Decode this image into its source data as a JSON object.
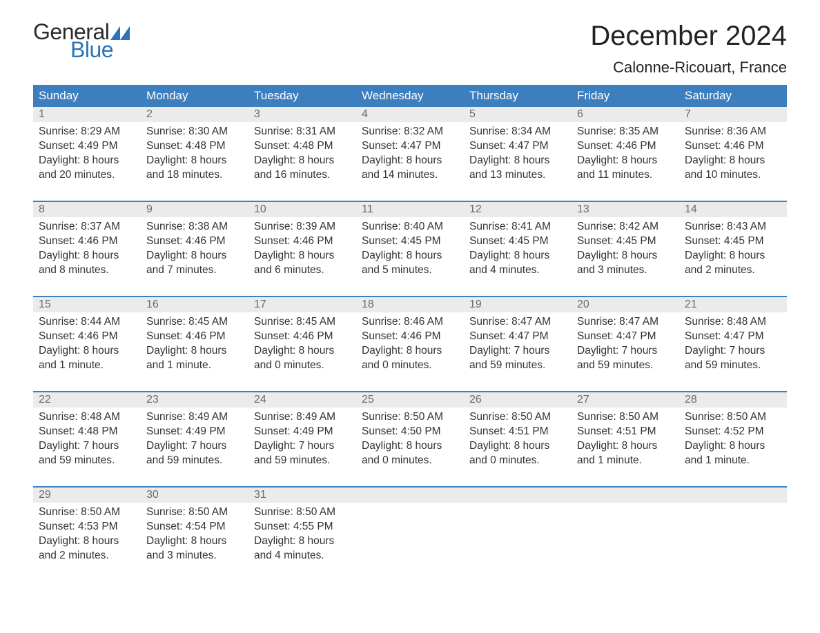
{
  "brand": {
    "word1": "General",
    "word2": "Blue",
    "text_color_dark": "#2b2b2b",
    "text_color_blue": "#2a73b8",
    "flag_color": "#2a73b8"
  },
  "header": {
    "title": "December 2024",
    "location": "Calonne-Ricouart, France"
  },
  "style": {
    "header_bg": "#3d7ebf",
    "header_text": "#ffffff",
    "daynum_bg": "#ebebeb",
    "daynum_text": "#6b6b6b",
    "body_text": "#333333",
    "week_border": "#3d7ebf",
    "page_bg": "#ffffff",
    "title_fontsize": 40,
    "subtitle_fontsize": 22,
    "weekday_fontsize": 17,
    "cell_fontsize": 15.5
  },
  "weekdays": [
    "Sunday",
    "Monday",
    "Tuesday",
    "Wednesday",
    "Thursday",
    "Friday",
    "Saturday"
  ],
  "weeks": [
    [
      {
        "d": "1",
        "sr": "Sunrise: 8:29 AM",
        "ss": "Sunset: 4:49 PM",
        "dl1": "Daylight: 8 hours",
        "dl2": "and 20 minutes."
      },
      {
        "d": "2",
        "sr": "Sunrise: 8:30 AM",
        "ss": "Sunset: 4:48 PM",
        "dl1": "Daylight: 8 hours",
        "dl2": "and 18 minutes."
      },
      {
        "d": "3",
        "sr": "Sunrise: 8:31 AM",
        "ss": "Sunset: 4:48 PM",
        "dl1": "Daylight: 8 hours",
        "dl2": "and 16 minutes."
      },
      {
        "d": "4",
        "sr": "Sunrise: 8:32 AM",
        "ss": "Sunset: 4:47 PM",
        "dl1": "Daylight: 8 hours",
        "dl2": "and 14 minutes."
      },
      {
        "d": "5",
        "sr": "Sunrise: 8:34 AM",
        "ss": "Sunset: 4:47 PM",
        "dl1": "Daylight: 8 hours",
        "dl2": "and 13 minutes."
      },
      {
        "d": "6",
        "sr": "Sunrise: 8:35 AM",
        "ss": "Sunset: 4:46 PM",
        "dl1": "Daylight: 8 hours",
        "dl2": "and 11 minutes."
      },
      {
        "d": "7",
        "sr": "Sunrise: 8:36 AM",
        "ss": "Sunset: 4:46 PM",
        "dl1": "Daylight: 8 hours",
        "dl2": "and 10 minutes."
      }
    ],
    [
      {
        "d": "8",
        "sr": "Sunrise: 8:37 AM",
        "ss": "Sunset: 4:46 PM",
        "dl1": "Daylight: 8 hours",
        "dl2": "and 8 minutes."
      },
      {
        "d": "9",
        "sr": "Sunrise: 8:38 AM",
        "ss": "Sunset: 4:46 PM",
        "dl1": "Daylight: 8 hours",
        "dl2": "and 7 minutes."
      },
      {
        "d": "10",
        "sr": "Sunrise: 8:39 AM",
        "ss": "Sunset: 4:46 PM",
        "dl1": "Daylight: 8 hours",
        "dl2": "and 6 minutes."
      },
      {
        "d": "11",
        "sr": "Sunrise: 8:40 AM",
        "ss": "Sunset: 4:45 PM",
        "dl1": "Daylight: 8 hours",
        "dl2": "and 5 minutes."
      },
      {
        "d": "12",
        "sr": "Sunrise: 8:41 AM",
        "ss": "Sunset: 4:45 PM",
        "dl1": "Daylight: 8 hours",
        "dl2": "and 4 minutes."
      },
      {
        "d": "13",
        "sr": "Sunrise: 8:42 AM",
        "ss": "Sunset: 4:45 PM",
        "dl1": "Daylight: 8 hours",
        "dl2": "and 3 minutes."
      },
      {
        "d": "14",
        "sr": "Sunrise: 8:43 AM",
        "ss": "Sunset: 4:45 PM",
        "dl1": "Daylight: 8 hours",
        "dl2": "and 2 minutes."
      }
    ],
    [
      {
        "d": "15",
        "sr": "Sunrise: 8:44 AM",
        "ss": "Sunset: 4:46 PM",
        "dl1": "Daylight: 8 hours",
        "dl2": "and 1 minute."
      },
      {
        "d": "16",
        "sr": "Sunrise: 8:45 AM",
        "ss": "Sunset: 4:46 PM",
        "dl1": "Daylight: 8 hours",
        "dl2": "and 1 minute."
      },
      {
        "d": "17",
        "sr": "Sunrise: 8:45 AM",
        "ss": "Sunset: 4:46 PM",
        "dl1": "Daylight: 8 hours",
        "dl2": "and 0 minutes."
      },
      {
        "d": "18",
        "sr": "Sunrise: 8:46 AM",
        "ss": "Sunset: 4:46 PM",
        "dl1": "Daylight: 8 hours",
        "dl2": "and 0 minutes."
      },
      {
        "d": "19",
        "sr": "Sunrise: 8:47 AM",
        "ss": "Sunset: 4:47 PM",
        "dl1": "Daylight: 7 hours",
        "dl2": "and 59 minutes."
      },
      {
        "d": "20",
        "sr": "Sunrise: 8:47 AM",
        "ss": "Sunset: 4:47 PM",
        "dl1": "Daylight: 7 hours",
        "dl2": "and 59 minutes."
      },
      {
        "d": "21",
        "sr": "Sunrise: 8:48 AM",
        "ss": "Sunset: 4:47 PM",
        "dl1": "Daylight: 7 hours",
        "dl2": "and 59 minutes."
      }
    ],
    [
      {
        "d": "22",
        "sr": "Sunrise: 8:48 AM",
        "ss": "Sunset: 4:48 PM",
        "dl1": "Daylight: 7 hours",
        "dl2": "and 59 minutes."
      },
      {
        "d": "23",
        "sr": "Sunrise: 8:49 AM",
        "ss": "Sunset: 4:49 PM",
        "dl1": "Daylight: 7 hours",
        "dl2": "and 59 minutes."
      },
      {
        "d": "24",
        "sr": "Sunrise: 8:49 AM",
        "ss": "Sunset: 4:49 PM",
        "dl1": "Daylight: 7 hours",
        "dl2": "and 59 minutes."
      },
      {
        "d": "25",
        "sr": "Sunrise: 8:50 AM",
        "ss": "Sunset: 4:50 PM",
        "dl1": "Daylight: 8 hours",
        "dl2": "and 0 minutes."
      },
      {
        "d": "26",
        "sr": "Sunrise: 8:50 AM",
        "ss": "Sunset: 4:51 PM",
        "dl1": "Daylight: 8 hours",
        "dl2": "and 0 minutes."
      },
      {
        "d": "27",
        "sr": "Sunrise: 8:50 AM",
        "ss": "Sunset: 4:51 PM",
        "dl1": "Daylight: 8 hours",
        "dl2": "and 1 minute."
      },
      {
        "d": "28",
        "sr": "Sunrise: 8:50 AM",
        "ss": "Sunset: 4:52 PM",
        "dl1": "Daylight: 8 hours",
        "dl2": "and 1 minute."
      }
    ],
    [
      {
        "d": "29",
        "sr": "Sunrise: 8:50 AM",
        "ss": "Sunset: 4:53 PM",
        "dl1": "Daylight: 8 hours",
        "dl2": "and 2 minutes."
      },
      {
        "d": "30",
        "sr": "Sunrise: 8:50 AM",
        "ss": "Sunset: 4:54 PM",
        "dl1": "Daylight: 8 hours",
        "dl2": "and 3 minutes."
      },
      {
        "d": "31",
        "sr": "Sunrise: 8:50 AM",
        "ss": "Sunset: 4:55 PM",
        "dl1": "Daylight: 8 hours",
        "dl2": "and 4 minutes."
      },
      null,
      null,
      null,
      null
    ]
  ]
}
